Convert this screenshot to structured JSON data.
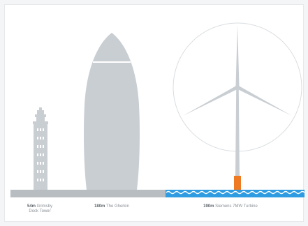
{
  "labels": {
    "tower": {
      "height": "54m",
      "name_line1": "Grimsby",
      "name_line2": "Dock Tower"
    },
    "gherkin": {
      "height": "180m",
      "name": "The Gherkin"
    },
    "turbine": {
      "height": "190m",
      "name": "Siemens 7MW Turbine"
    }
  },
  "colors": {
    "structure": "#c9ced3",
    "structure_light": "#dfe3e6",
    "ground": "#b8bdc1",
    "sea": "#2f9be0",
    "foundation": "#ee7a23",
    "circle": "#d9dde0"
  }
}
